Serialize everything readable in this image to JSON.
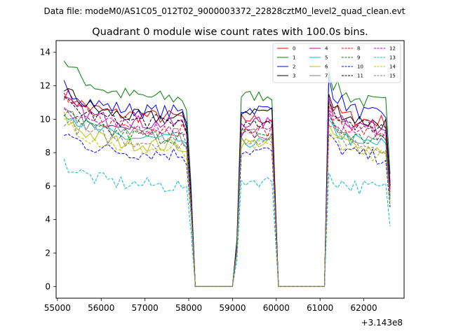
{
  "figure": {
    "suptitle": "Data file: modeM0/AS1C05_012T02_9000003372_22828cztM0_level2_quad_clean.evt"
  },
  "chart_data": {
    "type": "line",
    "title": "Quadrant 0 module wise count rates with 100.0s bins.",
    "xlabel": "",
    "ylabel": "",
    "offset_text": "+3.143e8",
    "xlim": [
      54970,
      62920
    ],
    "ylim": [
      -0.7,
      14.7
    ],
    "xticks": [
      55000,
      56000,
      57000,
      58000,
      59000,
      60000,
      61000,
      62000
    ],
    "xtick_labels": [
      "55000",
      "56000",
      "57000",
      "58000",
      "59000",
      "60000",
      "61000",
      "62000"
    ],
    "yticks": [
      0,
      2,
      4,
      6,
      8,
      10,
      12,
      14
    ],
    "ytick_labels": [
      "0",
      "2",
      "4",
      "6",
      "8",
      "10",
      "12",
      "14"
    ],
    "legend_position": "top-right",
    "segments": [
      {
        "start": 55150,
        "end": 58150
      },
      {
        "start": 59000,
        "end": 60050
      },
      {
        "start": 61100,
        "end": 62600
      }
    ],
    "series": [
      {
        "name": "0",
        "color": "#ff0000",
        "dashed": false,
        "level": 10.1,
        "start": 11.6,
        "peak2": 10.0,
        "peak3": 11.2
      },
      {
        "name": "1",
        "color": "#008000",
        "dashed": false,
        "level": 11.2,
        "start": 13.6,
        "peak2": 11.4,
        "peak3": 12.9
      },
      {
        "name": "2",
        "color": "#0000ff",
        "dashed": false,
        "level": 10.4,
        "start": 12.1,
        "peak2": 10.6,
        "peak3": 12.6
      },
      {
        "name": "3",
        "color": "#000000",
        "dashed": false,
        "level": 10.0,
        "start": 11.9,
        "peak2": 10.5,
        "peak3": 11.5
      },
      {
        "name": "4",
        "color": "#bf00bf",
        "dashed": false,
        "level": 9.7,
        "start": 11.1,
        "peak2": 9.8,
        "peak3": 11.3
      },
      {
        "name": "5",
        "color": "#00bfbf",
        "dashed": false,
        "level": 8.7,
        "start": 10.7,
        "peak2": 8.6,
        "peak3": 10.0
      },
      {
        "name": "6",
        "color": "#bfbf00",
        "dashed": false,
        "level": 8.4,
        "start": 10.1,
        "peak2": 8.6,
        "peak3": 9.7
      },
      {
        "name": "7",
        "color": "#808080",
        "dashed": false,
        "level": 9.0,
        "start": 10.6,
        "peak2": 9.1,
        "peak3": 10.4
      },
      {
        "name": "8",
        "color": "#ff0000",
        "dashed": true,
        "level": 9.4,
        "start": 11.4,
        "peak2": 9.3,
        "peak3": 10.9
      },
      {
        "name": "9",
        "color": "#008000",
        "dashed": true,
        "level": 8.9,
        "start": 10.4,
        "peak2": 9.1,
        "peak3": 10.2
      },
      {
        "name": "10",
        "color": "#0000ff",
        "dashed": true,
        "level": 7.9,
        "start": 9.2,
        "peak2": 8.1,
        "peak3": 9.1
      },
      {
        "name": "11",
        "color": "#000000",
        "dashed": true,
        "level": 9.8,
        "start": 11.0,
        "peak2": 9.6,
        "peak3": 11.0
      },
      {
        "name": "12",
        "color": "#bf00bf",
        "dashed": true,
        "level": 9.4,
        "start": 10.8,
        "peak2": 9.2,
        "peak3": 10.6
      },
      {
        "name": "13",
        "color": "#00bfbf",
        "dashed": true,
        "level": 6.0,
        "start": 7.4,
        "peak2": 6.3,
        "peak3": 6.8
      },
      {
        "name": "14",
        "color": "#bfbf00",
        "dashed": true,
        "level": 8.1,
        "start": 10.2,
        "peak2": 8.4,
        "peak3": 9.3
      },
      {
        "name": "15",
        "color": "#808080",
        "dashed": true,
        "level": 8.6,
        "start": 10.0,
        "peak2": 8.8,
        "peak3": 9.6
      }
    ]
  }
}
